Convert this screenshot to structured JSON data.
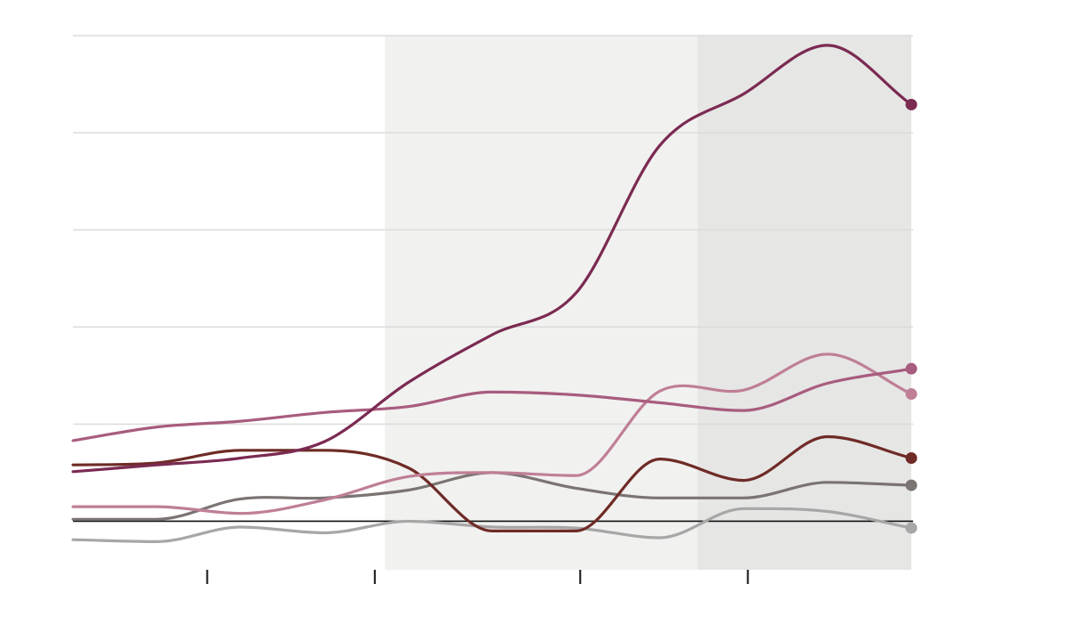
{
  "chart_data": {
    "type": "line",
    "title": "",
    "xlabel": "",
    "ylabel": "",
    "xlim": [
      0,
      10
    ],
    "ylim": [
      -0.5,
      5
    ],
    "grid": true,
    "legend": "none",
    "gridlines": [
      0,
      1,
      2,
      3,
      4,
      5
    ],
    "baseline": 0,
    "xticks": [
      1.6,
      3.6,
      6.05,
      8.05
    ],
    "shaded_regions": [
      {
        "from": 3.72,
        "to": 7.45,
        "color": "#f1f1f0"
      },
      {
        "from": 7.45,
        "to": 10,
        "color": "#e6e6e5"
      }
    ],
    "x": [
      0,
      1,
      2,
      3,
      4,
      5,
      6,
      7,
      8,
      9,
      10
    ],
    "series": [
      {
        "color": "#7b2a52",
        "values": [
          0.51,
          0.58,
          0.65,
          0.82,
          1.43,
          1.92,
          2.35,
          3.87,
          4.4,
          4.9,
          4.29
        ]
      },
      {
        "color": "#a85c7e",
        "values": [
          0.83,
          0.97,
          1.03,
          1.12,
          1.18,
          1.33,
          1.3,
          1.22,
          1.14,
          1.42,
          1.57
        ]
      },
      {
        "color": "#bf7f96",
        "values": [
          0.15,
          0.15,
          0.08,
          0.22,
          0.46,
          0.5,
          0.47,
          1.34,
          1.35,
          1.72,
          1.31
        ]
      },
      {
        "color": "#6f2b26",
        "values": [
          0.58,
          0.6,
          0.73,
          0.73,
          0.55,
          -0.1,
          -0.1,
          0.64,
          0.42,
          0.87,
          0.65
        ]
      },
      {
        "color": "#7a7472",
        "values": [
          0.02,
          0.02,
          0.23,
          0.24,
          0.32,
          0.5,
          0.34,
          0.24,
          0.24,
          0.4,
          0.37
        ]
      },
      {
        "color": "#a8a6a6",
        "values": [
          -0.19,
          -0.21,
          -0.06,
          -0.12,
          0.0,
          -0.06,
          -0.07,
          -0.17,
          0.13,
          0.1,
          -0.07
        ]
      }
    ]
  }
}
